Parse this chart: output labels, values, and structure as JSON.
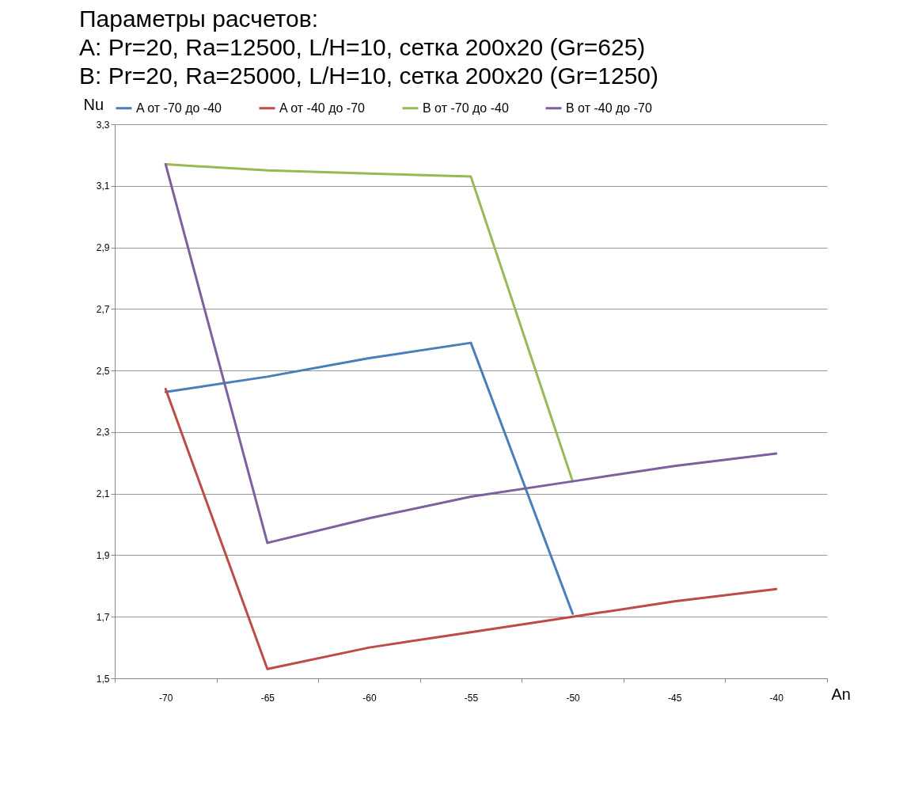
{
  "chart_data": {
    "type": "line",
    "title": [
      "Параметры расчетов:",
      "A: Pr=20, Ra=12500, L/H=10, сетка 200x20 (Gr=625)",
      "B: Pr=20, Ra=25000, L/H=10, сетка 200x20 (Gr=1250)"
    ],
    "xlabel": "An",
    "ylabel": "Nu",
    "categories": [
      "-70",
      "-65",
      "-60",
      "-55",
      "-50",
      "-45",
      "-40"
    ],
    "series": [
      {
        "name": "A от -70 до -40",
        "color": "#4a7ebb",
        "values": [
          2.43,
          2.48,
          2.54,
          2.59,
          1.71,
          null,
          null
        ]
      },
      {
        "name": "A от -40 до -70",
        "color": "#be4b48",
        "values": [
          2.44,
          1.53,
          1.6,
          1.65,
          1.7,
          1.75,
          1.79
        ]
      },
      {
        "name": "B от -70 до -40",
        "color": "#98b954",
        "values": [
          3.17,
          3.15,
          3.14,
          3.13,
          2.14,
          null,
          null
        ]
      },
      {
        "name": "B от -40 до -70",
        "color": "#7d60a0",
        "values": [
          3.17,
          1.94,
          2.02,
          2.09,
          2.14,
          2.19,
          2.23
        ]
      }
    ],
    "ylim": [
      1.5,
      3.3
    ],
    "yticks": [
      {
        "value": 1.5,
        "label": "1,5"
      },
      {
        "value": 1.7,
        "label": "1,7"
      },
      {
        "value": 1.9,
        "label": "1,9"
      },
      {
        "value": 2.1,
        "label": "2,1"
      },
      {
        "value": 2.3,
        "label": "2,3"
      },
      {
        "value": 2.5,
        "label": "2,5"
      },
      {
        "value": 2.7,
        "label": "2,7"
      },
      {
        "value": 2.9,
        "label": "2,9"
      },
      {
        "value": 3.1,
        "label": "3,1"
      },
      {
        "value": 3.3,
        "label": "3,3"
      }
    ],
    "grid": "y",
    "legend": "top",
    "marker": "none",
    "line_style": "solid"
  }
}
